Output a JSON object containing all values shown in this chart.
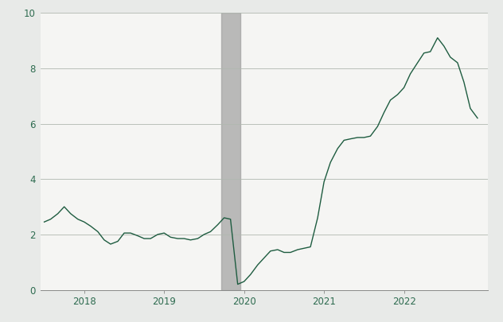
{
  "background_color": "#e8eae8",
  "plot_background_color": "#f5f5f3",
  "line_color": "#1e5c40",
  "line_width": 1.0,
  "ylim": [
    0,
    10
  ],
  "yticks": [
    0,
    2,
    4,
    6,
    8,
    10
  ],
  "recession_start": 2019.71,
  "recession_end": 2019.95,
  "recession_color": "#a0a0a0",
  "recession_alpha": 0.7,
  "grid_color": "#b0b8b0",
  "grid_linewidth": 0.6,
  "x_data": [
    2017.5,
    2017.58,
    2017.67,
    2017.75,
    2017.83,
    2017.92,
    2018.0,
    2018.08,
    2018.17,
    2018.25,
    2018.33,
    2018.42,
    2018.5,
    2018.58,
    2018.67,
    2018.75,
    2018.83,
    2018.92,
    2019.0,
    2019.08,
    2019.17,
    2019.25,
    2019.33,
    2019.42,
    2019.5,
    2019.58,
    2019.67,
    2019.75,
    2019.83,
    2019.92,
    2020.0,
    2020.08,
    2020.17,
    2020.25,
    2020.33,
    2020.42,
    2020.5,
    2020.58,
    2020.67,
    2020.75,
    2020.83,
    2020.92,
    2021.0,
    2021.08,
    2021.17,
    2021.25,
    2021.33,
    2021.42,
    2021.5,
    2021.58,
    2021.67,
    2021.75,
    2021.83,
    2021.92,
    2022.0,
    2022.08,
    2022.17,
    2022.25,
    2022.33,
    2022.42,
    2022.5,
    2022.58,
    2022.67,
    2022.75,
    2022.83,
    2022.92
  ],
  "y_data": [
    2.45,
    2.55,
    2.75,
    3.0,
    2.75,
    2.55,
    2.45,
    2.3,
    2.1,
    1.8,
    1.65,
    1.75,
    2.05,
    2.05,
    1.95,
    1.85,
    1.85,
    2.0,
    2.05,
    1.9,
    1.85,
    1.85,
    1.8,
    1.85,
    2.0,
    2.1,
    2.35,
    2.6,
    2.55,
    0.2,
    0.3,
    0.55,
    0.9,
    1.15,
    1.4,
    1.45,
    1.35,
    1.35,
    1.45,
    1.5,
    1.55,
    2.6,
    3.9,
    4.6,
    5.1,
    5.4,
    5.45,
    5.5,
    5.5,
    5.55,
    5.9,
    6.4,
    6.85,
    7.05,
    7.3,
    7.8,
    8.2,
    8.55,
    8.6,
    9.1,
    8.8,
    8.4,
    8.2,
    7.5,
    6.55,
    6.2
  ],
  "xtick_positions": [
    2018.0,
    2019.0,
    2020.0,
    2021.0,
    2022.0
  ],
  "xtick_labels": [
    "2018",
    "2019",
    "2020",
    "2021",
    "2022"
  ],
  "xlim_left": 2017.45,
  "xlim_right": 2023.05
}
